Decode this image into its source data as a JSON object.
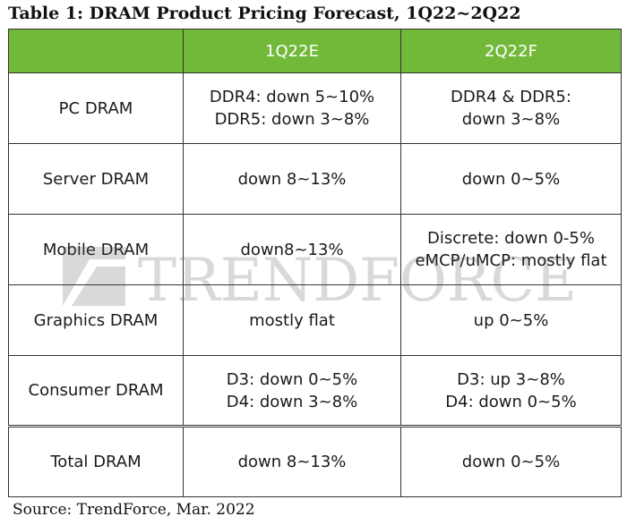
{
  "title": "Table 1: DRAM Product Pricing Forecast, 1Q22~2Q22",
  "columns": [
    "",
    "1Q22E",
    "2Q22F"
  ],
  "rows": [
    {
      "category": "PC DRAM",
      "q1": [
        "DDR4: down 5~10%",
        "DDR5: down 3~8%"
      ],
      "q2": [
        "DDR4 & DDR5:",
        "down 3~8%"
      ]
    },
    {
      "category": "Server DRAM",
      "q1": [
        "down 8~13%"
      ],
      "q2": [
        "down 0~5%"
      ]
    },
    {
      "category": "Mobile DRAM",
      "q1": [
        "down8~13%"
      ],
      "q2": [
        "Discrete: down 0-5%",
        "eMCP/uMCP: mostly flat"
      ]
    },
    {
      "category": "Graphics DRAM",
      "q1": [
        "mostly flat"
      ],
      "q2": [
        "up 0~5%"
      ]
    },
    {
      "category": "Consumer DRAM",
      "q1": [
        "D3: down 0~5%",
        "D4: down 3~8%"
      ],
      "q2": [
        "D3: up 3~8%",
        "D4: down 0~5%"
      ]
    },
    {
      "category": "Total DRAM",
      "q1": [
        "down 8~13%"
      ],
      "q2": [
        "down 0~5%"
      ]
    }
  ],
  "watermark": "TRENDFORCE",
  "source": "Source: TrendForce, Mar. 2022",
  "colors": {
    "header_bg": "#72b93a",
    "header_text": "#ffffff"
  }
}
